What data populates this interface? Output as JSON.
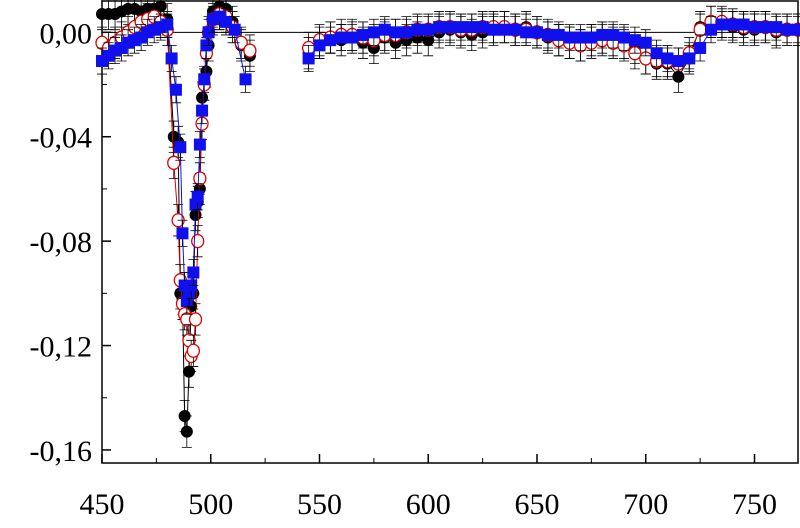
{
  "chart_data": {
    "type": "scatter",
    "title": "",
    "xlabel": "",
    "ylabel": "",
    "xlim": [
      450,
      770
    ],
    "ylim": [
      -0.165,
      0.012
    ],
    "x_ticks": [
      450,
      500,
      550,
      600,
      650,
      700,
      750
    ],
    "x_tick_labels": [
      "450",
      "500",
      "550",
      "600",
      "650",
      "700",
      "750"
    ],
    "y_ticks": [
      0.0,
      -0.04,
      -0.08,
      -0.12,
      -0.16
    ],
    "y_tick_labels": [
      "0,00",
      "-0,04",
      "-0,08",
      "-0,12",
      "-0,16"
    ],
    "zero_line": true,
    "grid": false,
    "legend": "none",
    "colors": {
      "black": "#000000",
      "red": "#dd0000",
      "blue": "#1010ee"
    },
    "series": [
      {
        "marker": "filled-circle",
        "color": "#000000",
        "x": [
          450,
          453,
          456,
          459,
          462,
          465,
          468,
          471,
          474,
          477,
          480,
          483,
          485,
          486,
          487,
          488,
          489,
          490,
          491,
          492,
          493,
          494,
          495,
          496,
          497,
          498,
          499,
          501,
          504,
          507,
          510,
          514,
          518,
          545,
          550,
          555,
          560,
          565,
          570,
          575,
          580,
          585,
          590,
          595,
          600,
          605,
          610,
          615,
          620,
          625,
          630,
          635,
          640,
          645,
          650,
          655,
          660,
          665,
          670,
          675,
          680,
          685,
          690,
          695,
          700,
          705,
          710,
          715,
          720,
          725,
          730,
          735,
          740,
          745,
          750,
          755,
          760,
          765,
          770
        ],
        "y": [
          0.007,
          0.007,
          0.007,
          0.008,
          0.009,
          0.009,
          0.008,
          0.009,
          0.009,
          0.01,
          0.005,
          -0.04,
          -0.042,
          -0.1,
          -0.102,
          -0.147,
          -0.153,
          -0.13,
          -0.105,
          -0.1,
          -0.07,
          -0.065,
          -0.06,
          -0.025,
          -0.02,
          -0.015,
          -0.005,
          0.008,
          0.01,
          0.009,
          0.004,
          -0.005,
          -0.009,
          -0.008,
          -0.004,
          -0.002,
          -0.003,
          -0.002,
          -0.004,
          -0.006,
          -0.002,
          -0.004,
          -0.003,
          -0.002,
          -0.003,
          0.0,
          0.001,
          0.0,
          -0.001,
          0.0,
          0.001,
          0.002,
          0.001,
          0.002,
          0.0,
          -0.002,
          -0.003,
          -0.004,
          -0.005,
          -0.003,
          -0.002,
          -0.003,
          -0.004,
          -0.006,
          -0.01,
          -0.012,
          -0.012,
          -0.017,
          -0.01,
          0.002,
          0.004,
          0.003,
          0.002,
          0.001,
          0.001,
          0.002,
          0.0,
          0.001,
          0.001
        ],
        "error": 0.006
      },
      {
        "marker": "open-circle",
        "color": "#dd0000",
        "x": [
          450,
          453,
          456,
          459,
          462,
          465,
          468,
          471,
          474,
          477,
          480,
          483,
          485,
          486,
          487,
          488,
          489,
          490,
          491,
          492,
          493,
          494,
          495,
          496,
          497,
          498,
          499,
          501,
          504,
          507,
          510,
          514,
          518,
          545,
          550,
          555,
          560,
          565,
          570,
          575,
          580,
          585,
          590,
          595,
          600,
          605,
          610,
          615,
          620,
          625,
          630,
          635,
          640,
          645,
          650,
          655,
          660,
          665,
          670,
          675,
          680,
          685,
          690,
          695,
          700,
          705,
          710,
          715,
          720,
          725,
          730,
          735,
          740,
          745,
          750,
          755,
          760,
          765,
          770
        ],
        "y": [
          -0.004,
          -0.006,
          -0.004,
          -0.002,
          0.0,
          0.002,
          0.004,
          0.005,
          0.006,
          0.004,
          0.001,
          -0.05,
          -0.072,
          -0.095,
          -0.104,
          -0.108,
          -0.11,
          -0.118,
          -0.124,
          -0.122,
          -0.11,
          -0.08,
          -0.056,
          -0.035,
          -0.02,
          -0.008,
          0.0,
          0.005,
          0.007,
          0.006,
          0.002,
          -0.004,
          -0.007,
          -0.006,
          -0.003,
          -0.002,
          -0.001,
          -0.001,
          -0.002,
          -0.003,
          -0.001,
          -0.001,
          0.0,
          0.001,
          0.001,
          0.002,
          0.002,
          0.001,
          0.001,
          0.002,
          0.002,
          0.002,
          0.001,
          0.001,
          0.0,
          -0.001,
          -0.003,
          -0.004,
          -0.005,
          -0.004,
          -0.003,
          -0.004,
          -0.005,
          -0.008,
          -0.01,
          -0.011,
          -0.011,
          -0.012,
          -0.008,
          0.001,
          0.004,
          0.004,
          0.003,
          0.002,
          0.002,
          0.002,
          0.001,
          0.001,
          0.001
        ],
        "error": 0.006
      },
      {
        "marker": "filled-square",
        "color": "#1010ee",
        "x": [
          450,
          453,
          456,
          459,
          462,
          465,
          468,
          471,
          474,
          477,
          480,
          482,
          484,
          486,
          487,
          488,
          489,
          490,
          491,
          492,
          493,
          494,
          495,
          496,
          497,
          498,
          499,
          501,
          504,
          507,
          511,
          516,
          545,
          550,
          555,
          560,
          565,
          570,
          575,
          580,
          585,
          590,
          595,
          600,
          605,
          610,
          615,
          620,
          625,
          630,
          635,
          640,
          645,
          650,
          655,
          660,
          665,
          670,
          675,
          680,
          685,
          690,
          695,
          700,
          705,
          710,
          715,
          720,
          725,
          730,
          735,
          740,
          745,
          750,
          755,
          760,
          765,
          770
        ],
        "y": [
          -0.011,
          -0.009,
          -0.007,
          -0.006,
          -0.004,
          -0.003,
          -0.002,
          0.0,
          0.001,
          0.002,
          0.003,
          -0.01,
          -0.022,
          -0.044,
          -0.077,
          -0.097,
          -0.103,
          -0.1,
          -0.097,
          -0.092,
          -0.066,
          -0.063,
          -0.043,
          -0.03,
          -0.018,
          -0.005,
          0.0,
          0.005,
          0.006,
          0.004,
          0.001,
          -0.018,
          -0.01,
          -0.005,
          -0.003,
          -0.002,
          -0.002,
          -0.001,
          0.0,
          0.001,
          0.0,
          0.0,
          0.001,
          0.001,
          0.002,
          0.002,
          0.002,
          0.002,
          0.002,
          0.001,
          0.001,
          0.001,
          0.0,
          0.0,
          -0.001,
          -0.001,
          -0.002,
          -0.002,
          -0.002,
          -0.001,
          -0.001,
          -0.002,
          -0.003,
          -0.004,
          -0.008,
          -0.01,
          -0.011,
          -0.01,
          -0.006,
          0.001,
          0.003,
          0.003,
          0.003,
          0.002,
          0.002,
          0.002,
          0.001,
          0.001
        ],
        "error": 0.005
      }
    ]
  }
}
